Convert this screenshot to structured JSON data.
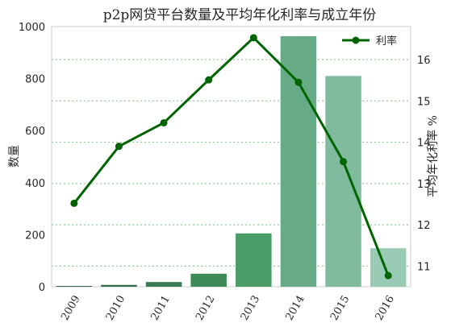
{
  "chart_data": {
    "type": "bar+line",
    "title": "p2p网贷平台数量及平均年化利率与成立年份",
    "categories": [
      "2009",
      "2010",
      "2011",
      "2012",
      "2013",
      "2014",
      "2015",
      "2016"
    ],
    "bar_series": {
      "values": [
        3,
        7,
        18,
        50,
        205,
        963,
        810,
        148
      ],
      "colors": [
        "#2e5e45",
        "#346b4b",
        "#3a7a52",
        "#3e8b58",
        "#4a9d68",
        "#66ab86",
        "#80bb9e",
        "#99cbb4"
      ]
    },
    "line_series": {
      "name": "利率",
      "values": [
        12.52,
        13.9,
        14.47,
        15.51,
        16.53,
        15.45,
        13.53,
        10.77
      ],
      "color": "#006400"
    },
    "ylabel_left": "数量",
    "ylabel_right": "平均年化利率 %",
    "ylim_left": [
      0,
      1000
    ],
    "yticks_left": [
      0,
      200,
      400,
      600,
      800,
      1000
    ],
    "ylim_right": [
      10.5,
      16.8
    ],
    "yticks_right": [
      11,
      12,
      13,
      14,
      15,
      16
    ],
    "grid": "right-axis dotted lines",
    "legend_position": "top-right"
  }
}
